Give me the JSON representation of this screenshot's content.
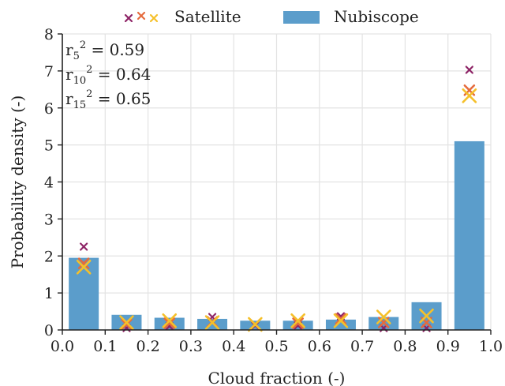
{
  "chart_data": {
    "type": "bar",
    "xlabel": "Cloud fraction (-)",
    "ylabel": "Probability density (-)",
    "xlim": [
      0.0,
      1.0
    ],
    "ylim": [
      0,
      8
    ],
    "x_ticks": [
      "0.0",
      "0.1",
      "0.2",
      "0.3",
      "0.4",
      "0.5",
      "0.6",
      "0.7",
      "0.8",
      "0.9",
      "1.0"
    ],
    "y_ticks": [
      "0",
      "1",
      "2",
      "3",
      "4",
      "5",
      "6",
      "7",
      "8"
    ],
    "grid": true,
    "legend_position": "top",
    "legend": [
      {
        "label": "Satellite",
        "marker": "x"
      },
      {
        "label": "Nubiscope",
        "marker": "bar"
      }
    ],
    "annotation": {
      "lines": [
        {
          "base": "r",
          "sub": "5",
          "sup": "2",
          "rest": " = 0.59"
        },
        {
          "base": "r",
          "sub": "10",
          "sup": "2",
          "rest": " = 0.64"
        },
        {
          "base": "r",
          "sub": "15",
          "sup": "2",
          "rest": " = 0.65"
        }
      ]
    },
    "x": [
      0.05,
      0.15,
      0.25,
      0.35,
      0.45,
      0.55,
      0.65,
      0.75,
      0.85,
      0.95
    ],
    "bar_width": 0.07,
    "bar_color": "#5b9dcb",
    "series": [
      {
        "name": "Nubiscope",
        "kind": "bar",
        "values": [
          1.95,
          0.41,
          0.33,
          0.3,
          0.25,
          0.25,
          0.28,
          0.35,
          0.75,
          5.1
        ]
      },
      {
        "kind": "marker",
        "color": "#8e2466",
        "size": "small",
        "values": [
          2.25,
          0.05,
          0.1,
          0.35,
          0.12,
          0.12,
          0.37,
          0.05,
          0.05,
          7.03
        ]
      },
      {
        "kind": "marker",
        "color": "#e56b3d",
        "size": "medium",
        "values": [
          1.8,
          0.15,
          0.18,
          0.22,
          0.15,
          0.18,
          0.3,
          0.2,
          0.2,
          6.48
        ]
      },
      {
        "kind": "marker",
        "color": "#f5c02a",
        "size": "large",
        "values": [
          1.7,
          0.2,
          0.25,
          0.2,
          0.15,
          0.25,
          0.25,
          0.35,
          0.38,
          6.33
        ]
      }
    ]
  }
}
